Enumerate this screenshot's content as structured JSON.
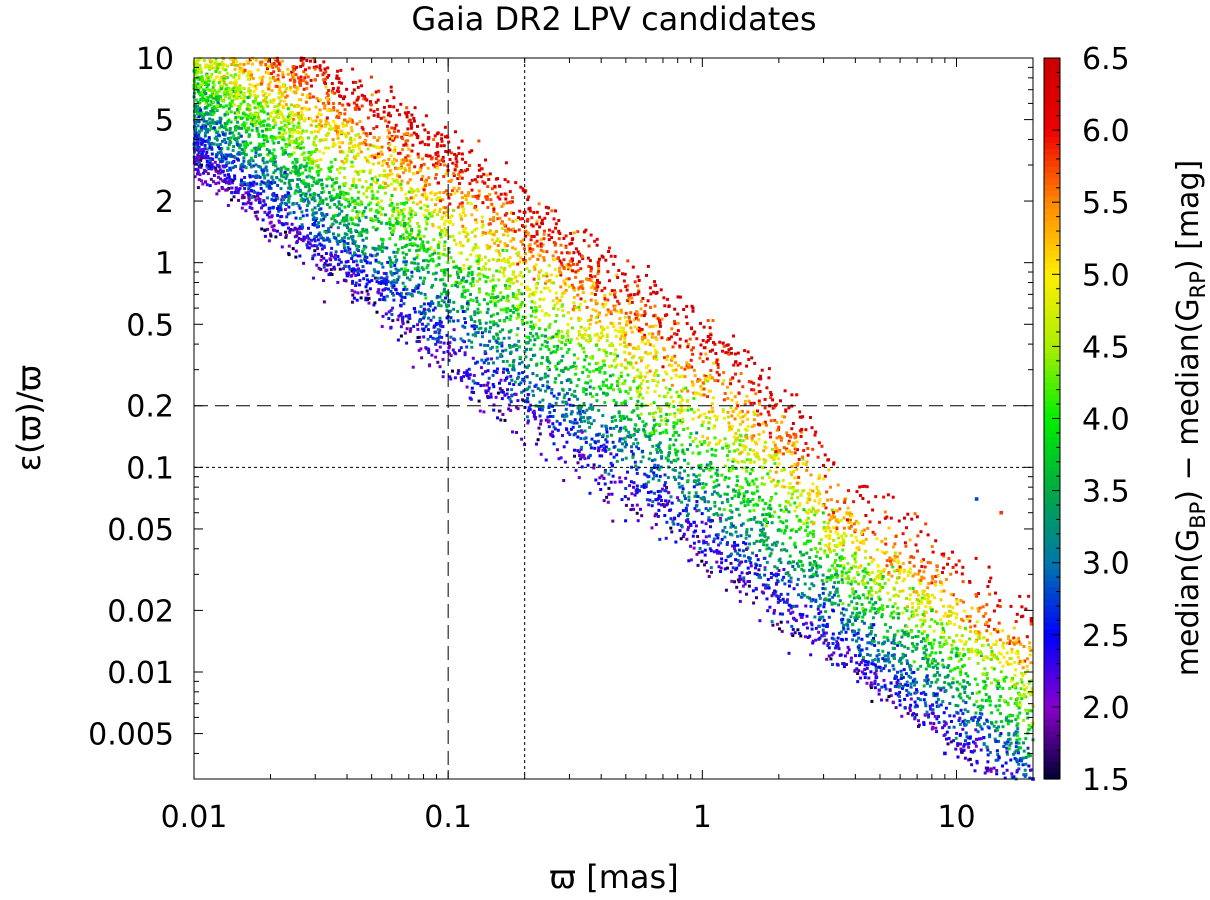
{
  "chart_data": {
    "type": "scatter",
    "title": "Gaia DR2 LPV candidates",
    "xlabel": "ϖ  [mas]",
    "ylabel": "ε(ϖ)/ϖ",
    "xscale": "log",
    "yscale": "log",
    "xlim": [
      0.01,
      20
    ],
    "ylim": [
      0.003,
      10
    ],
    "x_ticks": [
      {
        "value": 0.01,
        "label": "0.01"
      },
      {
        "value": 0.1,
        "label": "0.1"
      },
      {
        "value": 1,
        "label": "1"
      },
      {
        "value": 10,
        "label": "10"
      }
    ],
    "y_ticks": [
      {
        "value": 10,
        "label": "10"
      },
      {
        "value": 5,
        "label": "5"
      },
      {
        "value": 2,
        "label": "2"
      },
      {
        "value": 1,
        "label": "1"
      },
      {
        "value": 0.5,
        "label": "0.5"
      },
      {
        "value": 0.2,
        "label": "0.2"
      },
      {
        "value": 0.1,
        "label": "0.1"
      },
      {
        "value": 0.05,
        "label": "0.05"
      },
      {
        "value": 0.02,
        "label": "0.02"
      },
      {
        "value": 0.01,
        "label": "0.01"
      },
      {
        "value": 0.005,
        "label": "0.005"
      }
    ],
    "reference_lines": [
      {
        "orientation": "vertical",
        "value": 0.1,
        "style": "dashed"
      },
      {
        "orientation": "vertical",
        "value": 0.2,
        "style": "dotted"
      },
      {
        "orientation": "horizontal",
        "value": 0.2,
        "style": "dashed"
      },
      {
        "orientation": "horizontal",
        "value": 0.1,
        "style": "dotted"
      }
    ],
    "colorbar": {
      "label": "median(G_BP) − median(G_RP)  [mag]",
      "label_parts": {
        "pre1": "median(G",
        "sub1": "BP",
        "mid": ") − median(G",
        "sub2": "RP",
        "post": ")  [mag]"
      },
      "range": [
        1.5,
        6.5
      ],
      "ticks": [
        {
          "value": 6.5,
          "label": "6.5"
        },
        {
          "value": 6.0,
          "label": "6.0"
        },
        {
          "value": 5.5,
          "label": "5.5"
        },
        {
          "value": 5.0,
          "label": "5.0"
        },
        {
          "value": 4.5,
          "label": "4.5"
        },
        {
          "value": 4.0,
          "label": "4.0"
        },
        {
          "value": 3.5,
          "label": "3.5"
        },
        {
          "value": 3.0,
          "label": "3.0"
        },
        {
          "value": 2.5,
          "label": "2.5"
        },
        {
          "value": 2.0,
          "label": "2.0"
        },
        {
          "value": 1.5,
          "label": "1.5"
        }
      ],
      "colormap": [
        {
          "value": 1.5,
          "color": "#000033"
        },
        {
          "value": 2.0,
          "color": "#8800cc"
        },
        {
          "value": 2.5,
          "color": "#0000ff"
        },
        {
          "value": 3.0,
          "color": "#0077aa"
        },
        {
          "value": 3.5,
          "color": "#00aa44"
        },
        {
          "value": 4.0,
          "color": "#00ee00"
        },
        {
          "value": 4.5,
          "color": "#aaee00"
        },
        {
          "value": 5.0,
          "color": "#ffee00"
        },
        {
          "value": 5.5,
          "color": "#ff8800"
        },
        {
          "value": 6.0,
          "color": "#ee0000"
        },
        {
          "value": 6.5,
          "color": "#cc0000"
        }
      ]
    },
    "point_cloud": {
      "description_note": "dense cloud; color index increases with distance from the lower-left edge of the band",
      "count": 9000,
      "lower_edge": [
        {
          "x": 0.01,
          "y": 3.0
        },
        {
          "x": 0.1,
          "y": 0.3
        },
        {
          "x": 1.0,
          "y": 0.035
        },
        {
          "x": 10,
          "y": 0.004
        }
      ],
      "upper_edge": [
        {
          "x": 0.03,
          "y": 10
        },
        {
          "x": 0.1,
          "y": 4.0
        },
        {
          "x": 1.0,
          "y": 0.5
        },
        {
          "x": 3.0,
          "y": 0.15
        }
      ],
      "x_range": [
        0.01,
        20
      ],
      "outliers": [
        {
          "x": 15,
          "y": 0.06,
          "color_index": 5.8
        },
        {
          "x": 12,
          "y": 0.07,
          "color_index": 2.8
        },
        {
          "x": 20,
          "y": 0.003,
          "color_index": 2.6
        },
        {
          "x": 17,
          "y": 0.005,
          "color_index": 3.0
        },
        {
          "x": 9,
          "y": 0.004,
          "color_index": 2.4
        },
        {
          "x": 10,
          "y": 0.012,
          "color_index": 3.4
        },
        {
          "x": 8,
          "y": 0.02,
          "color_index": 3.8
        }
      ]
    }
  }
}
